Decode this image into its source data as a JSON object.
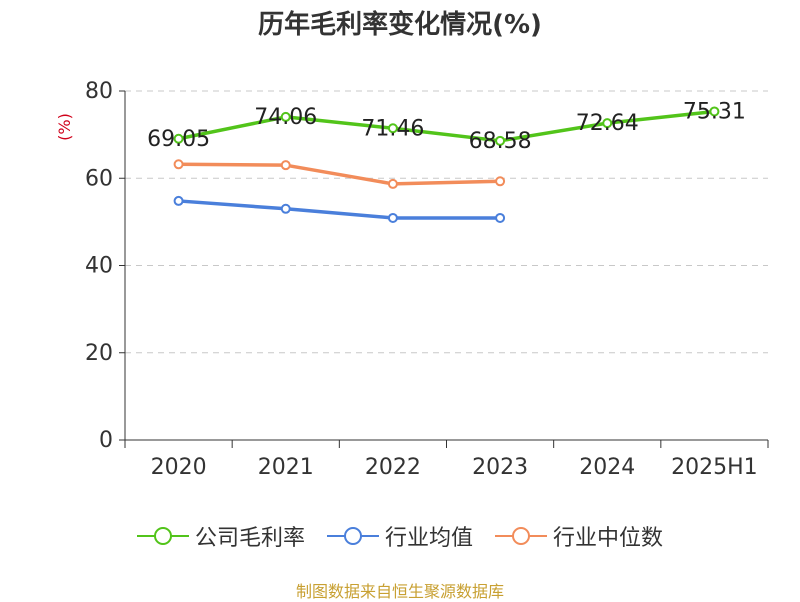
{
  "chart_data": {
    "type": "line",
    "title": "历年毛利率变化情况(%)",
    "ylabel": "(%)",
    "xlabel": "",
    "categories": [
      "2020",
      "2021",
      "2022",
      "2023",
      "2024",
      "2025H1"
    ],
    "ylim": [
      0,
      80
    ],
    "yticks": [
      "0",
      "20",
      "40",
      "60",
      "80"
    ],
    "grid": true,
    "legend_position": "bottom",
    "series": [
      {
        "name": "公司毛利率",
        "color": "#52c41a",
        "values": [
          69.05,
          74.06,
          71.46,
          68.58,
          72.64,
          75.31
        ],
        "labels": [
          "69.05",
          "74.06",
          "71.46",
          "68.58",
          "72.64",
          "75.31"
        ]
      },
      {
        "name": "行业均值",
        "color": "#4a7fdb",
        "values": [
          54.8,
          53.0,
          50.9,
          50.9,
          null,
          null
        ]
      },
      {
        "name": "行业中位数",
        "color": "#f28c5a",
        "values": [
          63.2,
          63.0,
          58.7,
          59.3,
          null,
          null
        ]
      }
    ]
  },
  "source": "制图数据来自恒生聚源数据库"
}
